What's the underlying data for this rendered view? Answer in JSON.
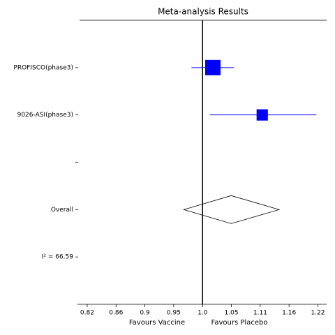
{
  "chart_data": {
    "type": "forest",
    "title": "Meta-analysis Results",
    "categories": [
      "PROFISCO(phase3)",
      "9026-ASI(phase3)",
      null,
      "Overall",
      "I² = 66.59"
    ],
    "estimates": [
      1.018,
      1.109,
      null,
      1.051,
      null
    ],
    "lower": [
      0.981,
      1.013,
      null,
      0.968,
      null
    ],
    "upper": [
      1.056,
      1.218,
      null,
      1.142,
      null
    ],
    "weights": [
      65,
      35,
      null,
      null,
      null
    ],
    "markers": [
      "square",
      "square",
      null,
      "diamond",
      null
    ],
    "color": "#0000ff",
    "xlabel_left": "Favours Vaccine",
    "xlabel_right": "Favours Placebo",
    "xlim": [
      0.805,
      1.24
    ],
    "log_x": true,
    "reference_value": 1,
    "xticks": [
      {
        "value": 0.8187,
        "label": "0.82"
      },
      {
        "value": 0.8607,
        "label": "0.86"
      },
      {
        "value": 0.9048,
        "label": "0.9"
      },
      {
        "value": 0.9512,
        "label": "0.95"
      },
      {
        "value": 1,
        "label": "1.0"
      },
      {
        "value": 1.0513,
        "label": "1.05"
      },
      {
        "value": 1.1052,
        "label": "1.11"
      },
      {
        "value": 1.1618,
        "label": "1.16"
      },
      {
        "value": 1.2214,
        "label": "1.22"
      }
    ]
  }
}
